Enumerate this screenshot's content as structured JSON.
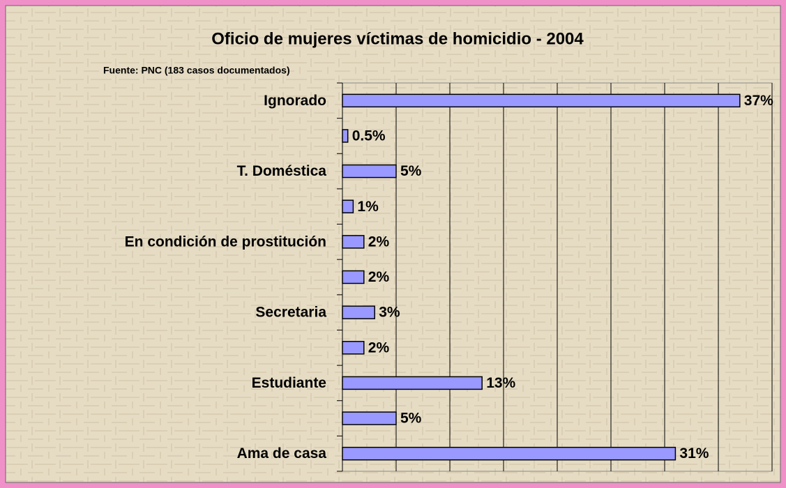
{
  "chart_data": {
    "type": "barh",
    "title": "Oficio de mujeres víctimas de homicidio - 2004",
    "subtitle": "Fuente: PNC (183 casos documentados)",
    "categories": [
      "Ignorado",
      null,
      "T. Doméstica",
      null,
      "En condición de prostitución",
      null,
      "Secretaria",
      null,
      "Estudiante",
      null,
      "Ama de casa"
    ],
    "values": [
      37,
      0.5,
      5,
      1,
      2,
      2,
      3,
      2,
      13,
      5,
      31
    ],
    "value_labels": [
      "37%",
      "0.5%",
      "5%",
      "1%",
      "2%",
      "2%",
      "3%",
      "2%",
      "13%",
      "5%",
      "31%"
    ],
    "color": "#9999ff",
    "xlim": [
      0,
      40
    ],
    "xticks": [
      0,
      5,
      10,
      15,
      20,
      25,
      30,
      35,
      40
    ],
    "grid": true
  }
}
